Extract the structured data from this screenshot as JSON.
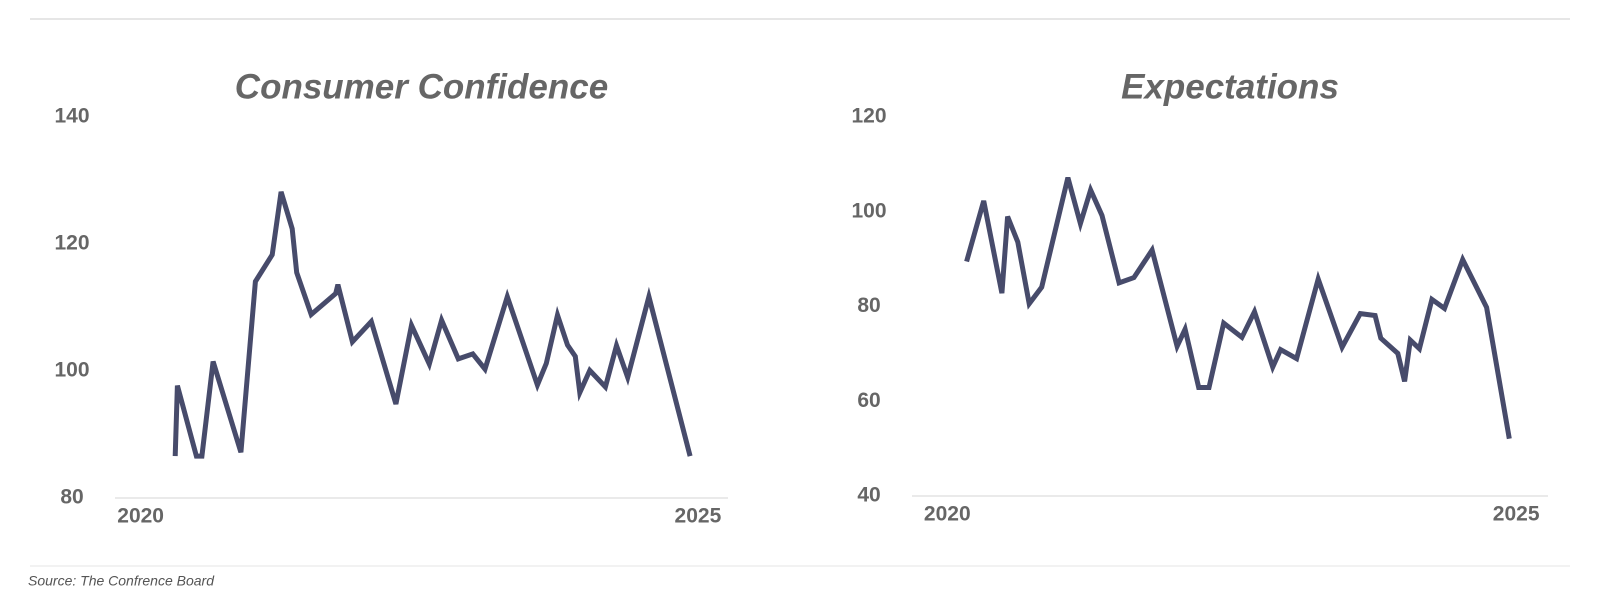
{
  "chart_data": [
    {
      "type": "line",
      "title": "Consumer Confidence",
      "color": "#474b6b",
      "grid": false,
      "x": [
        2020.31,
        2020.33,
        2020.5,
        2020.55,
        2020.65,
        2020.9,
        2021.03,
        2021.18,
        2021.26,
        2021.36,
        2021.4,
        2021.53,
        2021.75,
        2021.77,
        2021.9,
        2022.07,
        2022.29,
        2022.43,
        2022.59,
        2022.7,
        2022.85,
        2022.98,
        2023.09,
        2023.29,
        2023.56,
        2023.64,
        2023.74,
        2023.83,
        2023.9,
        2023.94,
        2024.03,
        2024.17,
        2024.27,
        2024.37,
        2024.56,
        2024.93
      ],
      "values": [
        86.6,
        97.7,
        86.6,
        86.6,
        101.5,
        87.2,
        114.1,
        118.3,
        128.2,
        122.4,
        115.5,
        108.9,
        112.2,
        113.6,
        104.6,
        107.8,
        94.8,
        107.2,
        101.1,
        108.0,
        101.9,
        102.7,
        100.3,
        111.7,
        97.8,
        101.2,
        108.8,
        104.1,
        102.3,
        96.6,
        100.1,
        97.5,
        104.0,
        99.0,
        111.7,
        86.6
      ],
      "xlim": [
        2019.77,
        2025.27
      ],
      "xticks": [
        2020,
        2025
      ],
      "ylim": [
        80,
        140
      ],
      "yticks": [
        80,
        100,
        120,
        140
      ]
    },
    {
      "type": "line",
      "title": "Expectations",
      "color": "#474b6b",
      "grid": false,
      "x": [
        2020.17,
        2020.32,
        2020.48,
        2020.53,
        2020.62,
        2020.72,
        2020.83,
        2021.06,
        2021.17,
        2021.26,
        2021.36,
        2021.51,
        2021.64,
        2021.8,
        2022.02,
        2022.09,
        2022.21,
        2022.3,
        2022.43,
        2022.59,
        2022.7,
        2022.86,
        2022.93,
        2023.07,
        2023.26,
        2023.47,
        2023.63,
        2023.76,
        2023.81,
        2023.96,
        2024.02,
        2024.07,
        2024.15,
        2024.26,
        2024.37,
        2024.53,
        2024.74,
        2024.94
      ],
      "values": [
        89.5,
        102.3,
        82.8,
        99.0,
        93.6,
        80.6,
        84.1,
        107.2,
        97.5,
        104.6,
        99.2,
        85.0,
        86.1,
        91.9,
        71.6,
        75.2,
        62.9,
        62.9,
        76.5,
        73.5,
        78.9,
        67.2,
        70.9,
        69.0,
        85.8,
        71.4,
        78.5,
        78.1,
        73.3,
        70.1,
        64.2,
        72.9,
        71.1,
        81.5,
        79.6,
        89.9,
        79.8,
        52.1
      ],
      "xlim": [
        2019.69,
        2025.28
      ],
      "xticks": [
        2020,
        2025
      ],
      "ylim": [
        40,
        120
      ],
      "yticks": [
        40,
        60,
        80,
        100,
        120
      ]
    }
  ],
  "source": "Source: The Confrence Board"
}
